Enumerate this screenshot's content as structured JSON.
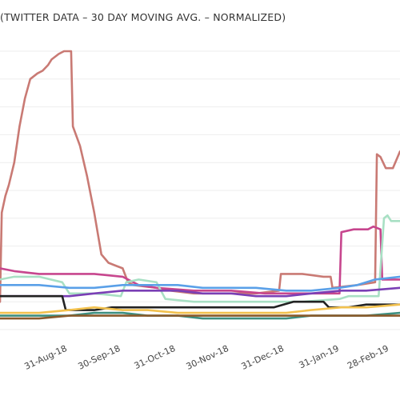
{
  "chart_data": {
    "type": "line",
    "title": "(TWITTER DATA – 30 DAY MOVING AVG. – NORMALIZED)",
    "xlabel": "",
    "ylabel": "",
    "x_type": "date",
    "x_range": [
      "2018-07-24",
      "2019-03-06"
    ],
    "ylim": [
      0,
      1.0
    ],
    "grid": "horizontal",
    "legend": "none",
    "x_ticks": [
      {
        "date": "2018-08-31",
        "label": "31-Aug-18"
      },
      {
        "date": "2018-09-30",
        "label": "30-Sep-18"
      },
      {
        "date": "2018-10-31",
        "label": "31-Oct-18"
      },
      {
        "date": "2018-11-30",
        "label": "30-Nov-18"
      },
      {
        "date": "2018-12-31",
        "label": "31-Dec-18"
      },
      {
        "date": "2019-01-31",
        "label": "31-Jan-19"
      },
      {
        "date": "2019-02-28",
        "label": "28-Feb-19"
      }
    ],
    "y_gridlines": [
      0.0,
      0.1,
      0.2,
      0.3,
      0.4,
      0.5,
      0.6,
      0.7,
      0.8,
      0.9,
      1.0
    ],
    "series": [
      {
        "color": "#c97a74",
        "points": [
          [
            "2018-07-24",
            0.1
          ],
          [
            "2018-07-25",
            0.42
          ],
          [
            "2018-07-27",
            0.48
          ],
          [
            "2018-07-29",
            0.52
          ],
          [
            "2018-08-01",
            0.6
          ],
          [
            "2018-08-04",
            0.73
          ],
          [
            "2018-08-07",
            0.83
          ],
          [
            "2018-08-10",
            0.9
          ],
          [
            "2018-08-14",
            0.92
          ],
          [
            "2018-08-17",
            0.93
          ],
          [
            "2018-08-20",
            0.95
          ],
          [
            "2018-08-22",
            0.97
          ],
          [
            "2018-08-26",
            0.99
          ],
          [
            "2018-08-29",
            1.0
          ],
          [
            "2018-09-02",
            1.0
          ],
          [
            "2018-09-03",
            0.73
          ],
          [
            "2018-09-07",
            0.66
          ],
          [
            "2018-09-11",
            0.55
          ],
          [
            "2018-09-15",
            0.42
          ],
          [
            "2018-09-19",
            0.27
          ],
          [
            "2018-09-23",
            0.24
          ],
          [
            "2018-09-27",
            0.23
          ],
          [
            "2018-10-01",
            0.22
          ],
          [
            "2018-10-04",
            0.17
          ],
          [
            "2018-10-07",
            0.16
          ],
          [
            "2018-10-20",
            0.15
          ],
          [
            "2018-10-28",
            0.14
          ],
          [
            "2018-11-10",
            0.13
          ],
          [
            "2018-11-30",
            0.13
          ],
          [
            "2018-12-15",
            0.13
          ],
          [
            "2018-12-28",
            0.14
          ],
          [
            "2018-12-29",
            0.2
          ],
          [
            "2019-01-10",
            0.2
          ],
          [
            "2019-01-22",
            0.19
          ],
          [
            "2019-01-26",
            0.19
          ],
          [
            "2019-01-27",
            0.15
          ],
          [
            "2019-02-10",
            0.16
          ],
          [
            "2019-02-20",
            0.17
          ],
          [
            "2019-02-21",
            0.63
          ],
          [
            "2019-02-23",
            0.62
          ],
          [
            "2019-02-26",
            0.58
          ],
          [
            "2019-03-02",
            0.58
          ],
          [
            "2019-03-06",
            0.64
          ]
        ]
      },
      {
        "color": "#c7468e",
        "points": [
          [
            "2018-07-24",
            0.22
          ],
          [
            "2018-08-01",
            0.21
          ],
          [
            "2018-08-15",
            0.2
          ],
          [
            "2018-09-01",
            0.2
          ],
          [
            "2018-09-15",
            0.2
          ],
          [
            "2018-10-01",
            0.19
          ],
          [
            "2018-10-10",
            0.16
          ],
          [
            "2018-10-20",
            0.15
          ],
          [
            "2018-11-10",
            0.14
          ],
          [
            "2018-12-01",
            0.14
          ],
          [
            "2018-12-20",
            0.13
          ],
          [
            "2019-01-05",
            0.13
          ],
          [
            "2019-01-31",
            0.13
          ],
          [
            "2019-02-01",
            0.35
          ],
          [
            "2019-02-08",
            0.36
          ],
          [
            "2019-02-16",
            0.36
          ],
          [
            "2019-02-19",
            0.37
          ],
          [
            "2019-02-23",
            0.36
          ],
          [
            "2019-02-24",
            0.18
          ],
          [
            "2019-03-06",
            0.18
          ]
        ]
      },
      {
        "color": "#a8e0c4",
        "points": [
          [
            "2018-07-24",
            0.18
          ],
          [
            "2018-08-01",
            0.19
          ],
          [
            "2018-08-15",
            0.19
          ],
          [
            "2018-08-28",
            0.17
          ],
          [
            "2018-09-01",
            0.13
          ],
          [
            "2018-09-15",
            0.13
          ],
          [
            "2018-09-30",
            0.12
          ],
          [
            "2018-10-03",
            0.17
          ],
          [
            "2018-10-10",
            0.18
          ],
          [
            "2018-10-20",
            0.17
          ],
          [
            "2018-10-25",
            0.11
          ],
          [
            "2018-11-10",
            0.1
          ],
          [
            "2018-11-25",
            0.1
          ],
          [
            "2018-12-15",
            0.1
          ],
          [
            "2019-01-10",
            0.1
          ],
          [
            "2019-01-31",
            0.11
          ],
          [
            "2019-02-05",
            0.12
          ],
          [
            "2019-02-15",
            0.12
          ],
          [
            "2019-02-22",
            0.12
          ],
          [
            "2019-02-25",
            0.4
          ],
          [
            "2019-02-27",
            0.41
          ],
          [
            "2019-03-01",
            0.39
          ],
          [
            "2019-03-06",
            0.39
          ]
        ]
      },
      {
        "color": "#5aa0e8",
        "points": [
          [
            "2018-07-24",
            0.16
          ],
          [
            "2018-08-15",
            0.16
          ],
          [
            "2018-09-01",
            0.15
          ],
          [
            "2018-09-15",
            0.15
          ],
          [
            "2018-10-01",
            0.16
          ],
          [
            "2018-10-15",
            0.16
          ],
          [
            "2018-11-01",
            0.16
          ],
          [
            "2018-11-15",
            0.15
          ],
          [
            "2018-12-01",
            0.15
          ],
          [
            "2018-12-15",
            0.15
          ],
          [
            "2019-01-01",
            0.14
          ],
          [
            "2019-01-15",
            0.14
          ],
          [
            "2019-01-31",
            0.15
          ],
          [
            "2019-02-10",
            0.16
          ],
          [
            "2019-02-20",
            0.18
          ],
          [
            "2019-03-06",
            0.19
          ]
        ]
      },
      {
        "color": "#7a3fb5",
        "points": [
          [
            "2018-07-24",
            0.12
          ],
          [
            "2018-08-15",
            0.12
          ],
          [
            "2018-09-01",
            0.12
          ],
          [
            "2018-09-15",
            0.13
          ],
          [
            "2018-10-01",
            0.14
          ],
          [
            "2018-10-15",
            0.14
          ],
          [
            "2018-11-01",
            0.14
          ],
          [
            "2018-11-15",
            0.13
          ],
          [
            "2018-12-01",
            0.13
          ],
          [
            "2018-12-15",
            0.12
          ],
          [
            "2019-01-01",
            0.12
          ],
          [
            "2019-01-15",
            0.13
          ],
          [
            "2019-02-01",
            0.14
          ],
          [
            "2019-02-15",
            0.14
          ],
          [
            "2019-03-06",
            0.15
          ]
        ]
      },
      {
        "color": "#222222",
        "points": [
          [
            "2018-07-24",
            0.12
          ],
          [
            "2018-08-01",
            0.12
          ],
          [
            "2018-08-15",
            0.12
          ],
          [
            "2018-08-28",
            0.12
          ],
          [
            "2018-08-30",
            0.07
          ],
          [
            "2018-09-15",
            0.07
          ],
          [
            "2018-09-25",
            0.08
          ],
          [
            "2018-10-10",
            0.08
          ],
          [
            "2018-10-25",
            0.08
          ],
          [
            "2018-11-15",
            0.08
          ],
          [
            "2018-12-01",
            0.08
          ],
          [
            "2018-12-15",
            0.08
          ],
          [
            "2018-12-25",
            0.08
          ],
          [
            "2019-01-05",
            0.1
          ],
          [
            "2019-01-15",
            0.1
          ],
          [
            "2019-01-22",
            0.1
          ],
          [
            "2019-01-25",
            0.08
          ],
          [
            "2019-02-05",
            0.08
          ],
          [
            "2019-02-15",
            0.09
          ],
          [
            "2019-03-06",
            0.09
          ]
        ]
      },
      {
        "color": "#f2c14e",
        "points": [
          [
            "2018-07-24",
            0.06
          ],
          [
            "2018-08-15",
            0.06
          ],
          [
            "2018-09-01",
            0.07
          ],
          [
            "2018-09-15",
            0.08
          ],
          [
            "2018-10-01",
            0.07
          ],
          [
            "2018-10-15",
            0.07
          ],
          [
            "2018-11-01",
            0.06
          ],
          [
            "2018-11-15",
            0.06
          ],
          [
            "2018-12-01",
            0.06
          ],
          [
            "2018-12-15",
            0.06
          ],
          [
            "2019-01-01",
            0.06
          ],
          [
            "2019-01-15",
            0.07
          ],
          [
            "2019-02-01",
            0.08
          ],
          [
            "2019-02-15",
            0.08
          ],
          [
            "2019-03-06",
            0.09
          ]
        ]
      },
      {
        "color": "#3d8f80",
        "points": [
          [
            "2018-07-24",
            0.05
          ],
          [
            "2018-08-15",
            0.05
          ],
          [
            "2018-09-01",
            0.05
          ],
          [
            "2018-09-15",
            0.06
          ],
          [
            "2018-10-01",
            0.06
          ],
          [
            "2018-10-15",
            0.05
          ],
          [
            "2018-11-01",
            0.05
          ],
          [
            "2018-11-15",
            0.04
          ],
          [
            "2018-12-01",
            0.04
          ],
          [
            "2018-12-15",
            0.04
          ],
          [
            "2019-01-01",
            0.04
          ],
          [
            "2019-01-15",
            0.05
          ],
          [
            "2019-02-01",
            0.05
          ],
          [
            "2019-02-15",
            0.05
          ],
          [
            "2019-03-06",
            0.06
          ]
        ]
      },
      {
        "color": "#8a5a2b",
        "points": [
          [
            "2018-07-24",
            0.04
          ],
          [
            "2018-08-15",
            0.04
          ],
          [
            "2018-09-01",
            0.05
          ],
          [
            "2018-09-15",
            0.05
          ],
          [
            "2018-10-01",
            0.05
          ],
          [
            "2018-10-15",
            0.05
          ],
          [
            "2018-11-01",
            0.05
          ],
          [
            "2018-11-15",
            0.05
          ],
          [
            "2018-12-01",
            0.05
          ],
          [
            "2018-12-15",
            0.05
          ],
          [
            "2019-01-01",
            0.05
          ],
          [
            "2019-01-15",
            0.05
          ],
          [
            "2019-02-01",
            0.05
          ],
          [
            "2019-02-15",
            0.05
          ],
          [
            "2019-03-06",
            0.05
          ]
        ]
      }
    ]
  }
}
